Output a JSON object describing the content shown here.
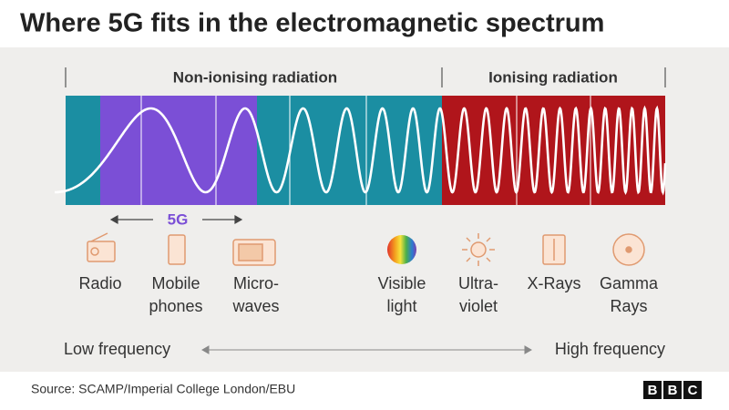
{
  "title": "Where 5G fits in the electromagnetic spectrum",
  "regions": [
    {
      "label": "Non-ionising radiation"
    },
    {
      "label": "Ionising radiation"
    }
  ],
  "band_label": "5G",
  "items": [
    {
      "lines": [
        "Radio"
      ]
    },
    {
      "lines": [
        "Mobile",
        "phones"
      ]
    },
    {
      "lines": [
        "Micro-",
        "waves"
      ]
    },
    {
      "lines": [
        "Visible",
        "light"
      ]
    },
    {
      "lines": [
        "Ultra-",
        "violet"
      ]
    },
    {
      "lines": [
        "X-Rays"
      ]
    },
    {
      "lines": [
        "Gamma",
        "Rays"
      ]
    }
  ],
  "axis": {
    "low": "Low frequency",
    "high": "High frequency"
  },
  "footer": {
    "source": "Source: SCAMP/Imperial College London/EBU",
    "logo": [
      "B",
      "B",
      "C"
    ]
  }
}
